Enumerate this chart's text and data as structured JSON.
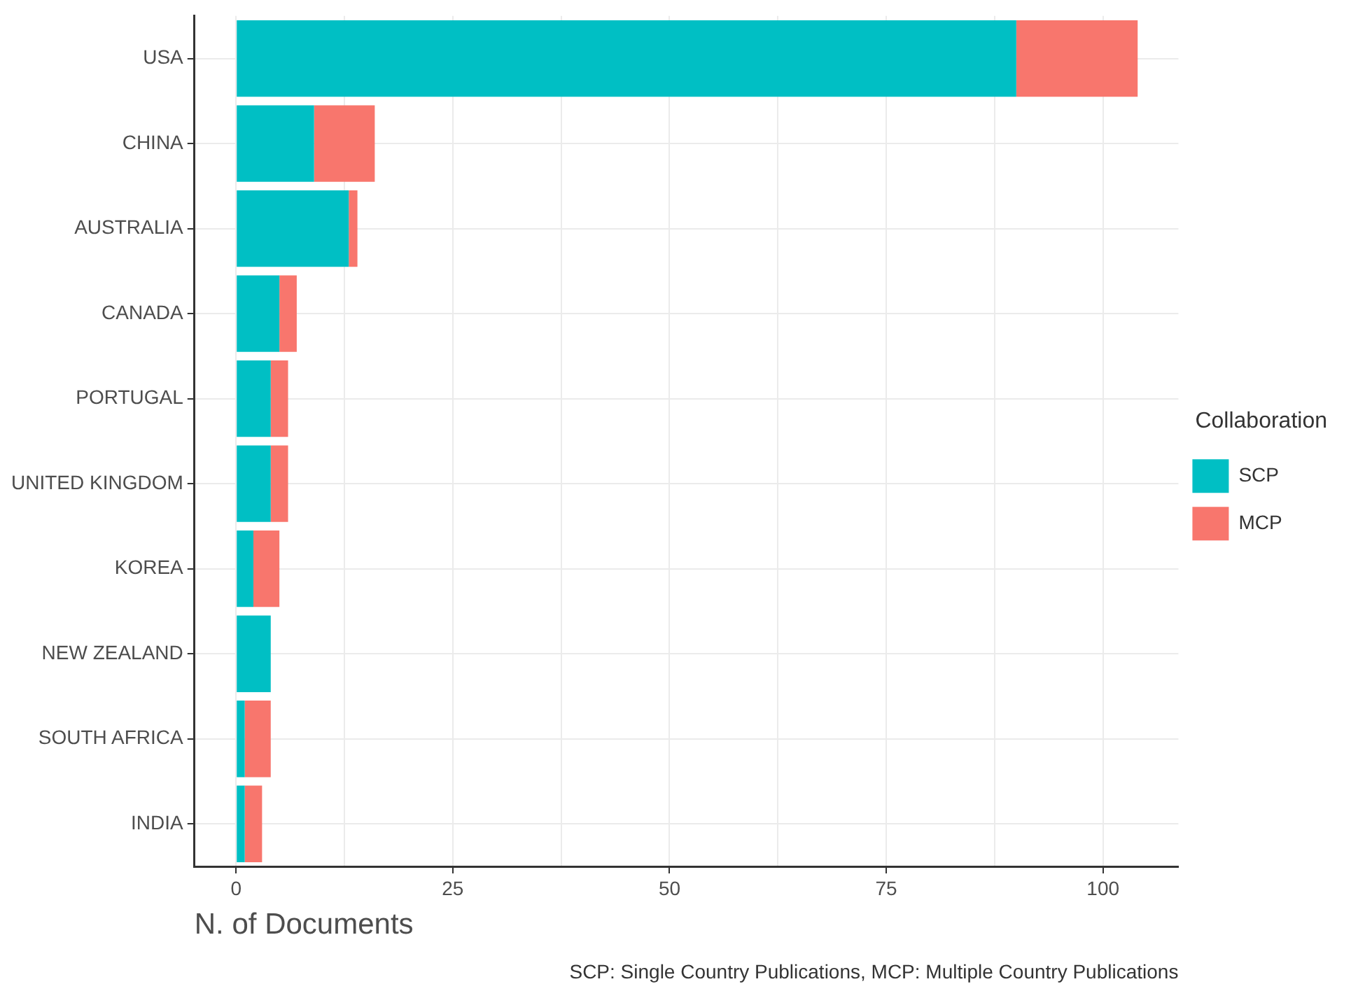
{
  "chart_data": {
    "type": "bar",
    "orientation": "horizontal",
    "stacked": true,
    "categories": [
      "USA",
      "CHINA",
      "AUSTRALIA",
      "CANADA",
      "PORTUGAL",
      "UNITED KINGDOM",
      "KOREA",
      "NEW ZEALAND",
      "SOUTH AFRICA",
      "INDIA"
    ],
    "series": [
      {
        "name": "SCP",
        "color": "#00bfc4",
        "values": [
          90,
          9,
          13,
          5,
          4,
          4,
          2,
          4,
          1,
          1
        ]
      },
      {
        "name": "MCP",
        "color": "#f8766d",
        "values": [
          14,
          7,
          1,
          2,
          2,
          2,
          3,
          0,
          3,
          2
        ]
      }
    ],
    "xlabel": "N. of Documents",
    "legend_title": "Collaboration",
    "legend": "right",
    "xlim": [
      -4.8,
      108.7
    ],
    "xticks": [
      0,
      {
        "value": 12.5,
        "label": null
      },
      25,
      {
        "value": 37.5,
        "label": null
      },
      50,
      {
        "value": 62.5,
        "label": null
      },
      75,
      {
        "value": 87.5,
        "label": null
      },
      100
    ],
    "grid": true,
    "annotations": [
      "SCP: Single Country Publications, MCP: Multiple Country Publications"
    ]
  }
}
